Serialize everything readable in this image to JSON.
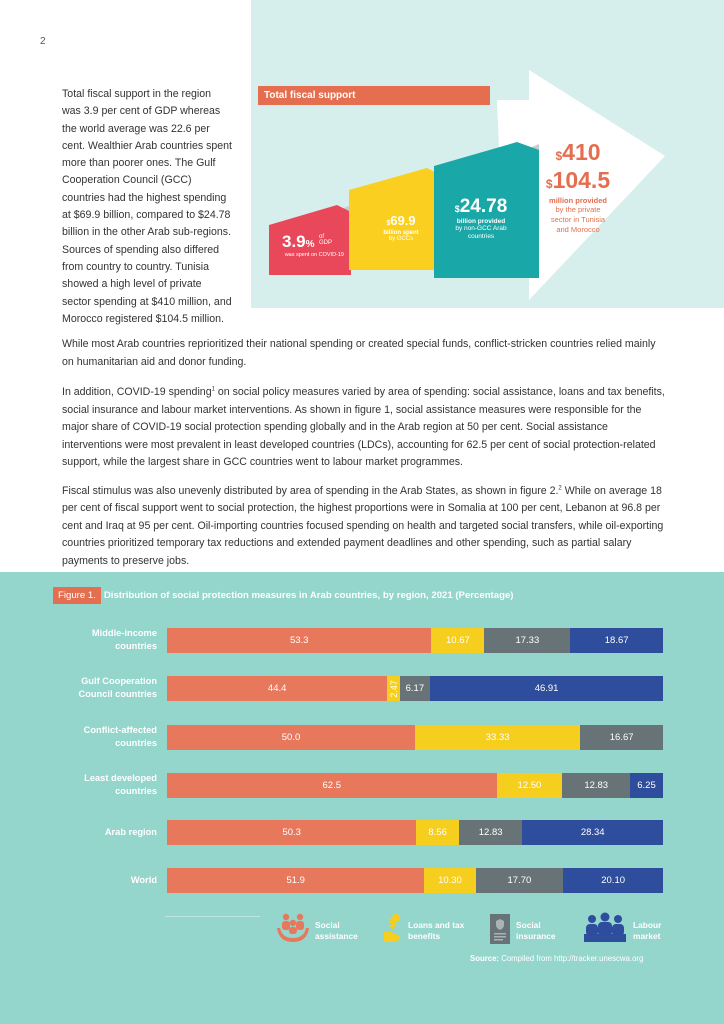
{
  "page_number": "2",
  "intro_text": "Total fiscal support in the region was 3.9 per cent of GDP whereas the world average was 22.6 per cent. Wealthier Arab countries spent more than poorer ones. The Gulf Cooperation Council (GCC) countries had the highest spending at $69.9 billion, compared to $24.78 billion in the other Arab sub-regions. Sources of spending also differed from country to country. Tunisia showed a high level of private sector spending at $410 million, and Morocco registered $104.5 million.",
  "infographic": {
    "title": "Total fiscal support",
    "step1": {
      "value": "3.9",
      "unit": "%",
      "of": "of GDP",
      "caption": "was spent on COVID-19"
    },
    "step2": {
      "prefix": "$",
      "value": "69.9",
      "caption1": "billion spent",
      "caption2": "by GCCs"
    },
    "step3": {
      "prefix": "$",
      "value": "24.78",
      "caption1": "billion provided",
      "caption2": "by non-GCC Arab countries"
    },
    "step4": {
      "prefix": "$",
      "value1": "410",
      "value2": "104.5",
      "caption1": "million provided",
      "caption2": "by the private sector in Tunisia and Morocco"
    }
  },
  "paragraphs": {
    "p0": "While most Arab countries reprioritized their national spending or created special funds, conflict-stricken countries relied mainly on humanitarian aid and donor funding.",
    "p1_a": "In addition, COVID-19 spending",
    "p1_sup": "1",
    "p1_b": " on social policy measures varied by area of spending: social assistance, loans and tax benefits, social insurance and labour market interventions. As shown in figure 1, social assistance measures were responsible for the major share of COVID-19 social protection spending globally and in the Arab region at 50 per cent. Social assistance interventions were most prevalent in least developed countries (LDCs), accounting for 62.5 per cent of social protection-related support, while the largest share in GCC countries went to labour market programmes.",
    "p2_a": "Fiscal stimulus was also unevenly distributed by area of spending in the Arab States, as shown in figure 2.",
    "p2_sup": "2",
    "p2_b": " While on average 18 per cent of fiscal support went to social protection, the highest proportions were in Somalia at 100 per cent, Lebanon at 96.8 per cent and Iraq at 95 per cent. Oil-importing countries focused spending on health and targeted social transfers, while oil-exporting countries prioritized temporary tax reductions and extended payment deadlines and other spending, such as partial salary payments to preserve jobs."
  },
  "figure": {
    "tag": "Figure 1.",
    "title": "Distribution of social protection measures in Arab countries, by region, 2021 (Percentage)",
    "source_label": "Source:",
    "source_text": " Compiled from http://tracker.unescwa.org"
  },
  "chart_data": {
    "type": "bar",
    "stacked": true,
    "orientation": "horizontal",
    "categories": [
      "Middle-income countries",
      "Gulf Cooperation Council countries",
      "Conflict-affected countries",
      "Least developed countries",
      "Arab region",
      "World"
    ],
    "series": [
      {
        "name": "Social assistance",
        "color": "#e8785c",
        "values": [
          53.3,
          44.4,
          50.0,
          62.5,
          50.3,
          51.9
        ],
        "labels": [
          "53.3",
          "44.4",
          "50.0",
          "62.5",
          "50.3",
          "51.9"
        ]
      },
      {
        "name": "Loans and tax benefits",
        "color": "#f6ce1d",
        "values": [
          10.67,
          2.47,
          33.33,
          12.5,
          8.56,
          10.3
        ],
        "labels": [
          "10.67",
          "2.47",
          "33.33",
          "12.50",
          "8.56",
          "10.30"
        ]
      },
      {
        "name": "Social insurance",
        "color": "#687377",
        "values": [
          17.33,
          6.17,
          16.67,
          12.83,
          12.83,
          17.7
        ],
        "labels": [
          "17.33",
          "6.17",
          "16.67",
          "12.83",
          "12.83",
          "17.70"
        ]
      },
      {
        "name": "Labour market",
        "color": "#2e4d9c",
        "values": [
          18.67,
          46.91,
          0,
          6.25,
          28.34,
          20.1
        ],
        "labels": [
          "18.67",
          "46.91",
          "",
          "6.25",
          "28.34",
          "20.10"
        ]
      }
    ],
    "row_labels": [
      [
        "Middle-income",
        "countries"
      ],
      [
        "Gulf Cooperation",
        "Council countries"
      ],
      [
        "Conflict-affected",
        "countries"
      ],
      [
        "Least developed",
        "countries"
      ],
      [
        "Arab region"
      ],
      [
        "World"
      ]
    ],
    "legend": [
      {
        "line1": "Social",
        "line2": "assistance",
        "icon": "people-hands-icon"
      },
      {
        "line1": "Loans and tax",
        "line2": "benefits",
        "icon": "money-hand-icon"
      },
      {
        "line1": "Social",
        "line2": "insurance",
        "icon": "document-icon"
      },
      {
        "line1": "Labour",
        "line2": "market",
        "icon": "workers-icon"
      }
    ],
    "legend_position": "bottom"
  }
}
